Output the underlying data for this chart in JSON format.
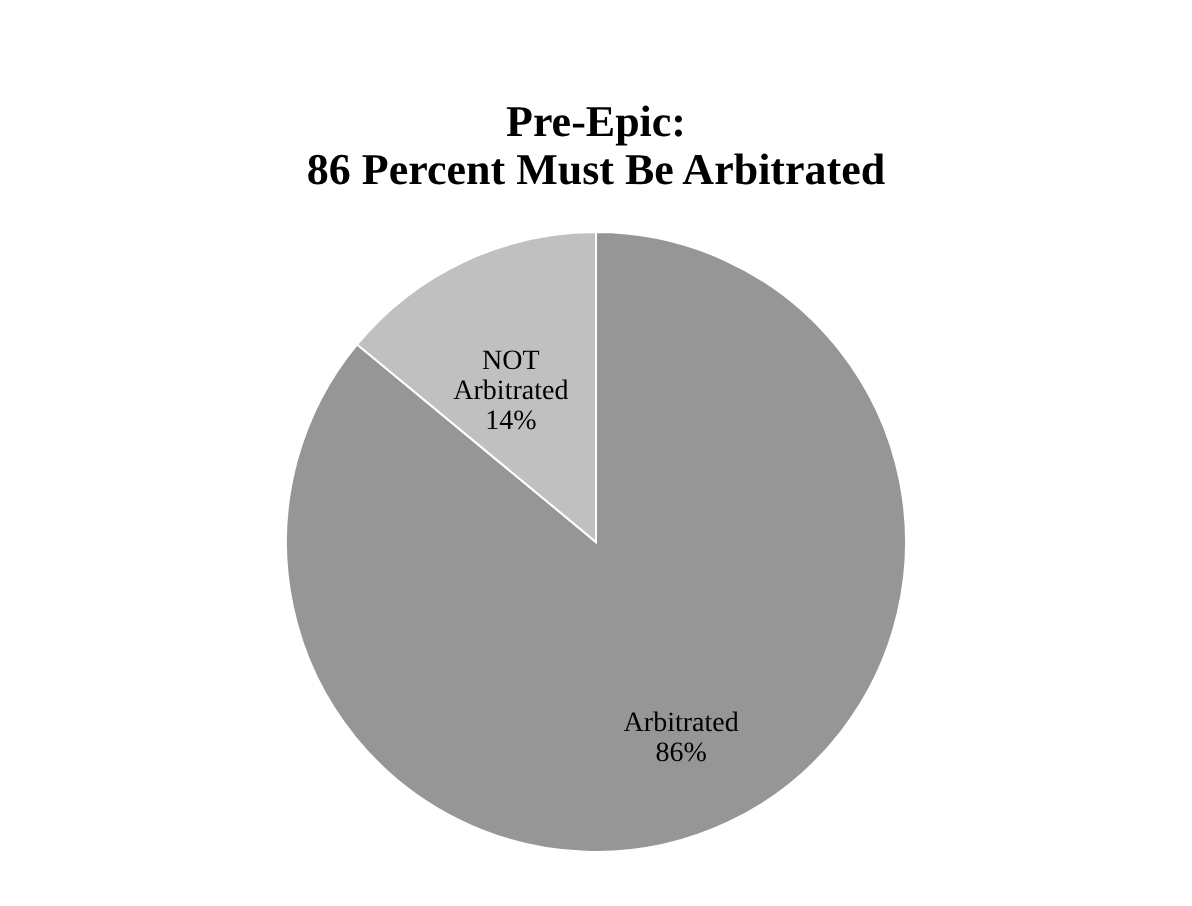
{
  "chart_data": {
    "type": "pie",
    "title": [
      "Pre-Epic:",
      "86 Percent Must Be Arbitrated"
    ],
    "categories": [
      "Arbitrated",
      "NOT Arbitrated"
    ],
    "values": [
      86,
      14
    ],
    "colors": [
      "#969696",
      "#c0c0c0"
    ],
    "value_labels": [
      "86%",
      "14%"
    ],
    "legend": false
  }
}
